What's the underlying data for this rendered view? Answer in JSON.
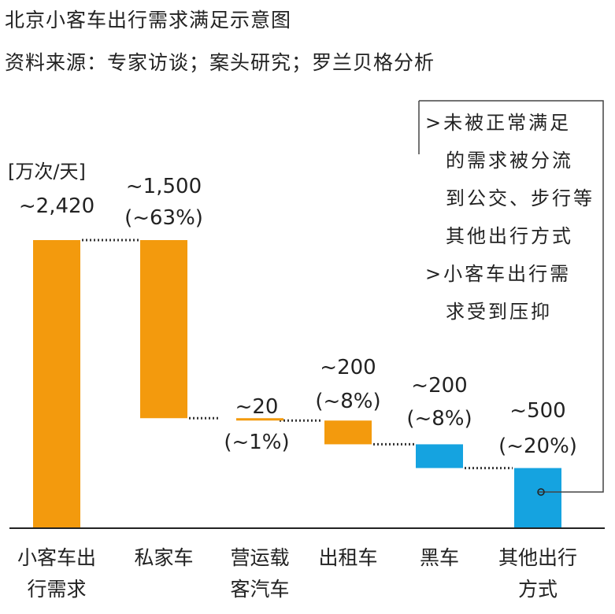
{
  "title": "北京小客车出行需求满足示意图",
  "subtitle": "资料来源：专家访谈；案头研究；罗兰贝格分析",
  "unit": "[万次/天]",
  "note": {
    "line1": ">未被正常满足",
    "line2": "的需求被分流",
    "line3": "到公交、步行等",
    "line4": "其他出行方式",
    "line5": ">小客车出行需",
    "line6": "求受到压抑"
  },
  "colors": {
    "orange": "#F39A0D",
    "blue": "#15A3E0",
    "axis": "#222222",
    "dots": "#333333"
  },
  "chart_data": {
    "type": "bar",
    "subtype": "waterfall",
    "categories": [
      "小客车出行需求",
      "私家车",
      "营运载客汽车",
      "出租车",
      "黑车",
      "其他出行方式"
    ],
    "category_labels": [
      [
        "小客车出",
        "行需求"
      ],
      [
        "私家车"
      ],
      [
        "营运载",
        "客汽车"
      ],
      [
        "出租车"
      ],
      [
        "黑车"
      ],
      [
        "其他出行",
        "方式"
      ]
    ],
    "values": [
      2420,
      1500,
      20,
      200,
      200,
      500
    ],
    "label_values": [
      "~2,420",
      "~1,500",
      "~20",
      "~200",
      "~200",
      "~500"
    ],
    "label_pcts": [
      "",
      "(~63%)",
      "(~1%)",
      "(~8%)",
      "(~8%)",
      "(~20%)"
    ],
    "bar_colors": [
      "orange",
      "orange",
      "orange",
      "orange",
      "blue",
      "blue"
    ],
    "ylim": [
      0,
      2420
    ]
  }
}
